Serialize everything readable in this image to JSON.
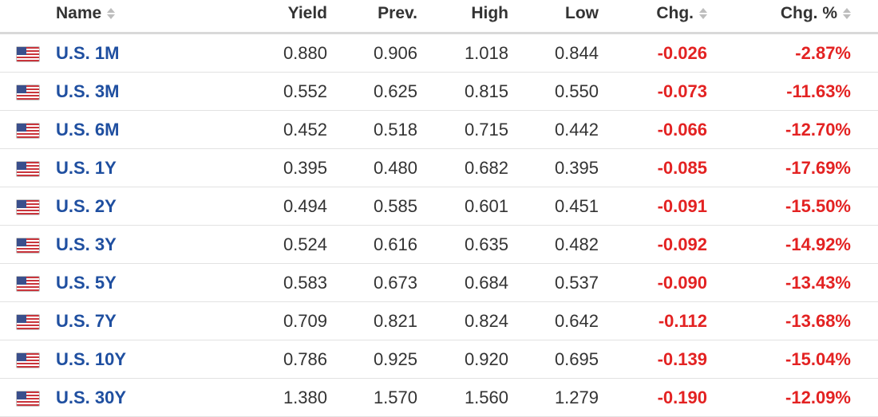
{
  "columns": {
    "name": "Name",
    "yield": "Yield",
    "prev": "Prev.",
    "high": "High",
    "low": "Low",
    "chg": "Chg.",
    "chg_pct": "Chg. %"
  },
  "colors": {
    "negative": "#e32222",
    "link": "#1f4fa0",
    "text": "#333333"
  },
  "flag_icon": "us-flag-icon",
  "rows": [
    {
      "name": "U.S. 1M",
      "yield": "0.880",
      "prev": "0.906",
      "high": "1.018",
      "low": "0.844",
      "chg": "-0.026",
      "chg_pct": "-2.87%"
    },
    {
      "name": "U.S. 3M",
      "yield": "0.552",
      "prev": "0.625",
      "high": "0.815",
      "low": "0.550",
      "chg": "-0.073",
      "chg_pct": "-11.63%"
    },
    {
      "name": "U.S. 6M",
      "yield": "0.452",
      "prev": "0.518",
      "high": "0.715",
      "low": "0.442",
      "chg": "-0.066",
      "chg_pct": "-12.70%"
    },
    {
      "name": "U.S. 1Y",
      "yield": "0.395",
      "prev": "0.480",
      "high": "0.682",
      "low": "0.395",
      "chg": "-0.085",
      "chg_pct": "-17.69%"
    },
    {
      "name": "U.S. 2Y",
      "yield": "0.494",
      "prev": "0.585",
      "high": "0.601",
      "low": "0.451",
      "chg": "-0.091",
      "chg_pct": "-15.50%"
    },
    {
      "name": "U.S. 3Y",
      "yield": "0.524",
      "prev": "0.616",
      "high": "0.635",
      "low": "0.482",
      "chg": "-0.092",
      "chg_pct": "-14.92%"
    },
    {
      "name": "U.S. 5Y",
      "yield": "0.583",
      "prev": "0.673",
      "high": "0.684",
      "low": "0.537",
      "chg": "-0.090",
      "chg_pct": "-13.43%"
    },
    {
      "name": "U.S. 7Y",
      "yield": "0.709",
      "prev": "0.821",
      "high": "0.824",
      "low": "0.642",
      "chg": "-0.112",
      "chg_pct": "-13.68%"
    },
    {
      "name": "U.S. 10Y",
      "yield": "0.786",
      "prev": "0.925",
      "high": "0.920",
      "low": "0.695",
      "chg": "-0.139",
      "chg_pct": "-15.04%"
    },
    {
      "name": "U.S. 30Y",
      "yield": "1.380",
      "prev": "1.570",
      "high": "1.560",
      "low": "1.279",
      "chg": "-0.190",
      "chg_pct": "-12.09%"
    }
  ]
}
